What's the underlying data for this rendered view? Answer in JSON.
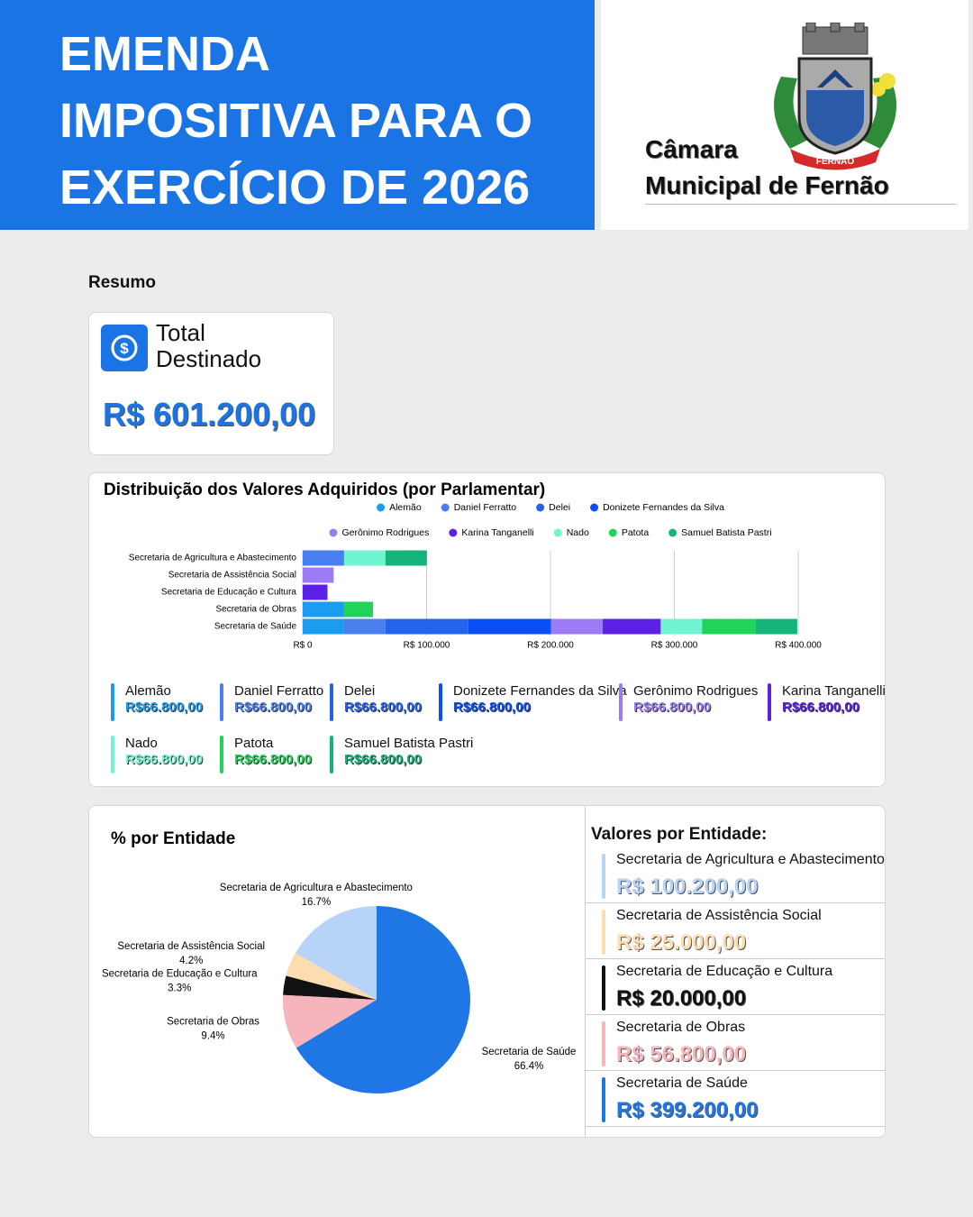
{
  "header": {
    "title_lines": [
      "EMENDA",
      "IMPOSITIVA PARA O",
      "EXERCÍCIO DE 2026"
    ],
    "organization_lines": [
      "Câmara",
      "Municipal de Fernão"
    ],
    "logo_text": "FERNÃO"
  },
  "summary": {
    "heading": "Resumo",
    "label": "Total Destinado",
    "value": "R$ 601.200,00"
  },
  "parliamentarian_totals": [
    "R$66.800,00",
    "R$66.800,00",
    "R$66.800,00",
    "R$66.800,00",
    "R$66.800,00",
    "R$66.800,00",
    "R$66.800,00",
    "R$66.800,00",
    "R$66.800,00"
  ],
  "entity_heading": "Valores por Entidade:",
  "entity_values": [
    "R$ 100.200,00",
    "R$ 25.000,00",
    "R$ 20.000,00",
    "R$ 56.800,00",
    "R$ 399.200,00"
  ],
  "chart_data": [
    {
      "type": "bar",
      "orientation": "horizontal",
      "stacked": true,
      "title": "Distribuição dos Valores Adquiridos (por Parlamentar)",
      "categories": [
        "Secretaria de Agricultura e Abastecimento",
        "Secretaria de Assistência Social",
        "Secretaria de Educação e Cultura",
        "Secretaria de Obras",
        "Secretaria de Saúde"
      ],
      "series": [
        {
          "name": "Alemão",
          "color": "#1a9cf0",
          "values": [
            null,
            null,
            null,
            33400,
            33400
          ]
        },
        {
          "name": "Daniel Ferratto",
          "color": "#4a7ff0",
          "values": [
            33400,
            null,
            null,
            null,
            33400
          ]
        },
        {
          "name": "Delei",
          "color": "#2563eb",
          "values": [
            null,
            null,
            null,
            null,
            66800
          ]
        },
        {
          "name": "Donizete Fernandes da Silva",
          "color": "#0a4ff5",
          "values": [
            null,
            null,
            null,
            null,
            66800
          ]
        },
        {
          "name": "Gerônimo Rodrigues",
          "color": "#9b7cf5",
          "values": [
            null,
            25000,
            null,
            null,
            41800
          ]
        },
        {
          "name": "Karina Tanganelli",
          "color": "#5b21e6",
          "values": [
            null,
            null,
            20000,
            null,
            46800
          ]
        },
        {
          "name": "Nado",
          "color": "#6ff5cf",
          "values": [
            33400,
            null,
            null,
            null,
            33400
          ]
        },
        {
          "name": "Patota",
          "color": "#22d35a",
          "values": [
            null,
            null,
            null,
            23400,
            43400
          ]
        },
        {
          "name": "Samuel Batista Pastri",
          "color": "#14b47a",
          "values": [
            33400,
            null,
            null,
            null,
            33400
          ]
        }
      ],
      "xlim": [
        0,
        400000
      ],
      "xticks": [
        {
          "value": 0,
          "label": "R$ 0"
        },
        {
          "value": 100000,
          "label": "R$ 100.000"
        },
        {
          "value": 200000,
          "label": "R$ 200.000"
        },
        {
          "value": 300000,
          "label": "R$ 300.000"
        },
        {
          "value": 400000,
          "label": "R$ 400.000"
        }
      ],
      "grid": true
    },
    {
      "type": "pie",
      "title": "% por Entidade",
      "categories": [
        "Secretaria de Agricultura e Abastecimento",
        "Secretaria de Assistência Social",
        "Secretaria de Educação e Cultura",
        "Secretaria de Obras",
        "Secretaria de Saúde"
      ],
      "values": [
        16.7,
        4.2,
        3.3,
        9.4,
        66.4
      ],
      "value_labels": [
        "16.7%",
        "4.2%",
        "3.3%",
        "9.4%",
        "66.4%"
      ],
      "colors": [
        "#b7d3f7",
        "#fddcb0",
        "#111111",
        "#f6b5bd",
        "#1f77e6"
      ]
    }
  ]
}
